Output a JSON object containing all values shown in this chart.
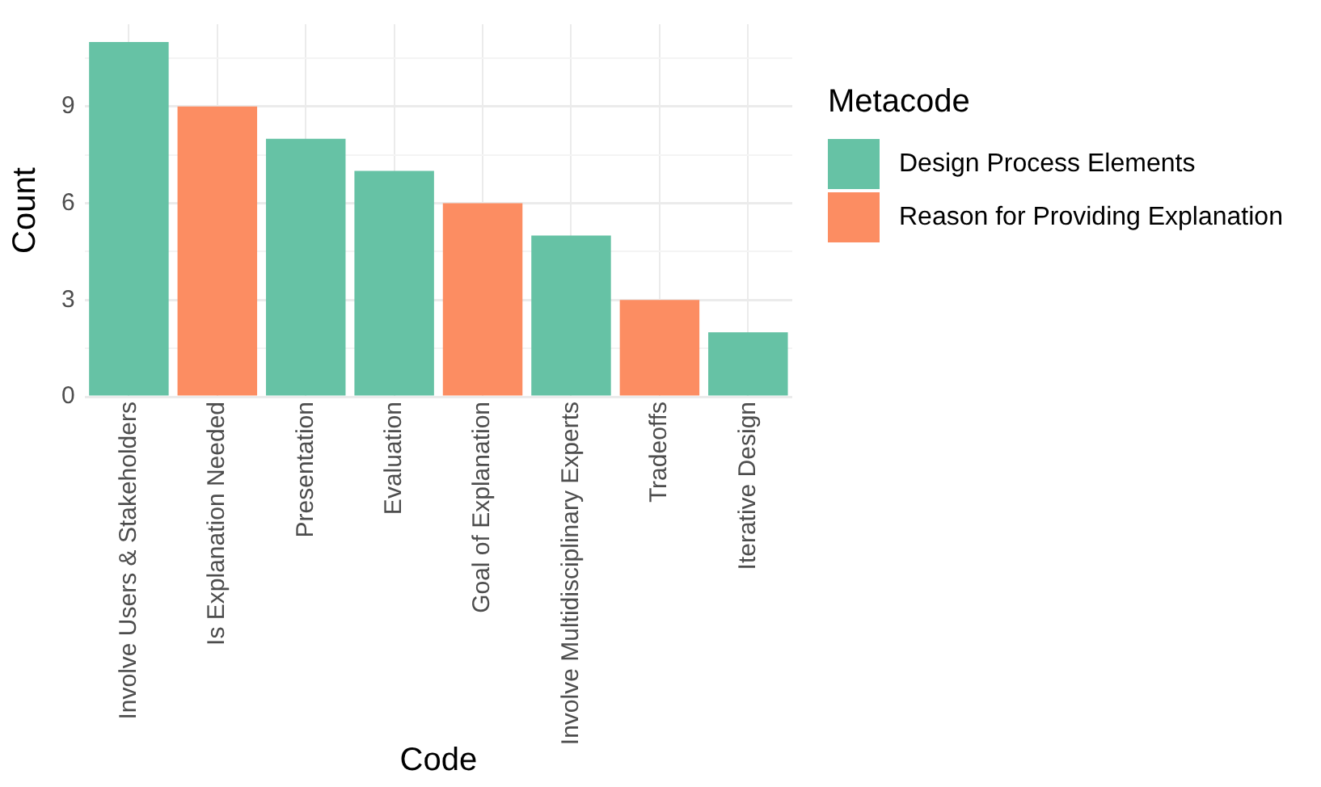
{
  "chart_data": {
    "type": "bar",
    "xlabel": "Code",
    "ylabel": "Count",
    "legend_title": "Metacode",
    "legend": "right",
    "categories": [
      "Involve Users & Stakeholders",
      "Is Explanation Needed",
      "Presentation",
      "Evaluation",
      "Goal of Explanation",
      "Involve Multidisciplinary Experts",
      "Tradeoffs",
      "Iterative Design"
    ],
    "series": [
      {
        "name": "Design Process Elements",
        "color": "#66c2a5",
        "values": [
          11,
          null,
          8,
          7,
          null,
          5,
          null,
          2
        ]
      },
      {
        "name": "Reason for Providing Explanation",
        "color": "#fc8d62",
        "values": [
          null,
          9,
          null,
          null,
          6,
          null,
          3,
          null
        ]
      }
    ],
    "ylim": [
      0,
      11.55
    ],
    "yticks": [
      0,
      {
        "value": 1.5,
        "label": null
      },
      3,
      {
        "value": 4.5,
        "label": null
      },
      6,
      {
        "value": 7.5,
        "label": null
      },
      9,
      {
        "value": 10.5,
        "label": null
      }
    ],
    "grid": true
  }
}
